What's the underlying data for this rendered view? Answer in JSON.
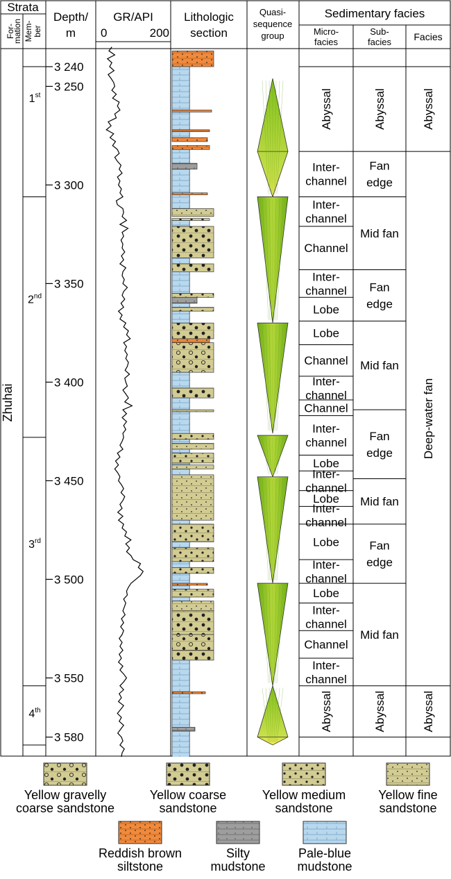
{
  "header": {
    "strata": "Strata",
    "formation": [
      "For-",
      "mation"
    ],
    "member": [
      "Mem-",
      "ber"
    ],
    "depth": [
      "Depth/",
      "m"
    ],
    "gr": "GR/API",
    "gr_min": "0",
    "gr_max": "200",
    "litho": [
      "Lithologic",
      "section"
    ],
    "quasi": [
      "Quasi-",
      "sequence",
      "group"
    ],
    "sedfacies": "Sedimentary facies",
    "microfacies": [
      "Micro-",
      "facies"
    ],
    "subfacies": [
      "Sub-",
      "facies"
    ],
    "facies": "Facies"
  },
  "formation_name": "Zhuhai",
  "members": [
    {
      "num": "1",
      "sup": "st",
      "top": 3232,
      "bottom": 3306
    },
    {
      "num": "2",
      "sup": "nd",
      "top": 3306,
      "bottom": 3428
    },
    {
      "num": "3",
      "sup": "rd",
      "top": 3428,
      "bottom": 3554
    },
    {
      "num": "4",
      "sup": "th",
      "top": 3554,
      "bottom": 3592
    }
  ],
  "depth_ticks": [
    {
      "value": 3240,
      "label": "3 240"
    },
    {
      "value": 3250,
      "label": "3 250"
    },
    {
      "value": 3300,
      "label": "3 300"
    },
    {
      "value": 3350,
      "label": "3 350"
    },
    {
      "value": 3400,
      "label": "3 400"
    },
    {
      "value": 3450,
      "label": "3 450"
    },
    {
      "value": 3500,
      "label": "3 500"
    },
    {
      "value": 3550,
      "label": "3 550"
    },
    {
      "value": 3580,
      "label": "3 580"
    }
  ],
  "triangles": [
    {
      "top": 3246,
      "mid": 3283,
      "bottom": 3306
    },
    {
      "top": 3306,
      "bottom": 3370
    },
    {
      "top": 3370,
      "bottom": 3426
    },
    {
      "top": 3427,
      "bottom": 3448
    },
    {
      "top": 3448,
      "bottom": 3502
    },
    {
      "top": 3502,
      "bottom": 3554
    },
    {
      "top": 3554,
      "mid": 3580,
      "bottom": 3584
    }
  ],
  "microfacies": [
    {
      "label": "Abyssal",
      "top": 3240,
      "bottom": 3283,
      "vertical": false
    },
    {
      "label": "Inter-\nchannel",
      "top": 3283,
      "bottom": 3306
    },
    {
      "label": "Inter-\nchannel",
      "top": 3306,
      "bottom": 3321
    },
    {
      "label": "Channel",
      "top": 3321,
      "bottom": 3343
    },
    {
      "label": "Inter-\nchannel",
      "top": 3343,
      "bottom": 3357
    },
    {
      "label": "Lobe",
      "top": 3357,
      "bottom": 3369
    },
    {
      "label": "Lobe",
      "top": 3369,
      "bottom": 3381
    },
    {
      "label": "Channel",
      "top": 3381,
      "bottom": 3397
    },
    {
      "label": "Inter-\nchannel",
      "top": 3397,
      "bottom": 3409
    },
    {
      "label": "Channel",
      "top": 3409,
      "bottom": 3417
    },
    {
      "label": "Inter-\nchannel",
      "top": 3417,
      "bottom": 3437
    },
    {
      "label": "Lobe",
      "top": 3437,
      "bottom": 3445
    },
    {
      "label": "Inter-\nchannel",
      "top": 3445,
      "bottom": 3455
    },
    {
      "label": "Lobe",
      "top": 3455,
      "bottom": 3463
    },
    {
      "label": "Inter-\nchannel",
      "top": 3463,
      "bottom": 3472
    },
    {
      "label": "Lobe",
      "top": 3472,
      "bottom": 3490
    },
    {
      "label": "Inter-\nchannel",
      "top": 3490,
      "bottom": 3502
    },
    {
      "label": "Lobe",
      "top": 3502,
      "bottom": 3512
    },
    {
      "label": "Inter-\nchannel",
      "top": 3512,
      "bottom": 3526
    },
    {
      "label": "Channel",
      "top": 3526,
      "bottom": 3540
    },
    {
      "label": "Inter-\nchannel",
      "top": 3540,
      "bottom": 3554
    },
    {
      "label": "Abyssal",
      "top": 3554,
      "bottom": 3580,
      "vertical": true
    }
  ],
  "subfacies": [
    {
      "label": "Abyssal",
      "top": 3240,
      "bottom": 3283
    },
    {
      "label": "Fan\nedge",
      "top": 3283,
      "bottom": 3306
    },
    {
      "label": "Mid fan",
      "top": 3306,
      "bottom": 3343
    },
    {
      "label": "Fan\nedge",
      "top": 3343,
      "bottom": 3369
    },
    {
      "label": "Mid fan",
      "top": 3369,
      "bottom": 3414
    },
    {
      "label": "Fan\nedge",
      "top": 3414,
      "bottom": 3449
    },
    {
      "label": "Mid fan",
      "top": 3449,
      "bottom": 3472
    },
    {
      "label": "Fan\nedge",
      "top": 3472,
      "bottom": 3502
    },
    {
      "label": "Mid fan",
      "top": 3502,
      "bottom": 3554
    },
    {
      "label": "Abyssal",
      "top": 3554,
      "bottom": 3580,
      "vertical": true
    }
  ],
  "facies": [
    {
      "label": "Abyssal",
      "top": 3240,
      "bottom": 3283
    },
    {
      "label": "Deep-water fan",
      "top": 3283,
      "bottom": 3554
    },
    {
      "label": "Abyssal",
      "top": 3554,
      "bottom": 3580
    }
  ],
  "lithology": [
    {
      "type": "reddish",
      "top": 3232,
      "bottom": 3240,
      "w": 1.0
    },
    {
      "type": "paleblue",
      "top": 3240,
      "bottom": 3262,
      "w": 0.42
    },
    {
      "type": "reddish",
      "top": 3262,
      "bottom": 3263,
      "w": 0.95
    },
    {
      "type": "paleblue",
      "top": 3263,
      "bottom": 3272,
      "w": 0.42
    },
    {
      "type": "reddish",
      "top": 3272,
      "bottom": 3273,
      "w": 0.9
    },
    {
      "type": "paleblue",
      "top": 3273,
      "bottom": 3276,
      "w": 0.42
    },
    {
      "type": "reddish",
      "top": 3276,
      "bottom": 3278,
      "w": 0.85
    },
    {
      "type": "reddish",
      "top": 3280,
      "bottom": 3282,
      "w": 0.9
    },
    {
      "type": "paleblue",
      "top": 3282,
      "bottom": 3289,
      "w": 0.42
    },
    {
      "type": "silty",
      "top": 3289,
      "bottom": 3292,
      "w": 0.6
    },
    {
      "type": "paleblue",
      "top": 3292,
      "bottom": 3312,
      "w": 0.42
    },
    {
      "type": "reddish",
      "top": 3304,
      "bottom": 3305,
      "w": 0.85
    },
    {
      "type": "fine",
      "top": 3312,
      "bottom": 3316,
      "w": 1.0
    },
    {
      "type": "medium",
      "top": 3317,
      "bottom": 3318,
      "w": 0.9
    },
    {
      "type": "paleblue",
      "top": 3318,
      "bottom": 3321,
      "w": 0.42
    },
    {
      "type": "coarse",
      "top": 3321,
      "bottom": 3337,
      "w": 1.0
    },
    {
      "type": "paleblue",
      "top": 3337,
      "bottom": 3340,
      "w": 0.42
    },
    {
      "type": "coarse",
      "top": 3340,
      "bottom": 3344,
      "w": 1.0
    },
    {
      "type": "paleblue",
      "top": 3344,
      "bottom": 3355,
      "w": 0.42
    },
    {
      "type": "medium",
      "top": 3355,
      "bottom": 3357,
      "w": 1.0
    },
    {
      "type": "silty",
      "top": 3357,
      "bottom": 3360,
      "w": 0.6
    },
    {
      "type": "paleblue",
      "top": 3360,
      "bottom": 3362,
      "w": 0.42
    },
    {
      "type": "medium",
      "top": 3362,
      "bottom": 3364,
      "w": 1.0
    },
    {
      "type": "paleblue",
      "top": 3364,
      "bottom": 3370,
      "w": 0.42
    },
    {
      "type": "coarse",
      "top": 3370,
      "bottom": 3378,
      "w": 1.0
    },
    {
      "type": "reddish",
      "top": 3378,
      "bottom": 3380,
      "w": 0.9
    },
    {
      "type": "gravelly",
      "top": 3380,
      "bottom": 3395,
      "w": 1.0
    },
    {
      "type": "paleblue",
      "top": 3395,
      "bottom": 3403,
      "w": 0.42
    },
    {
      "type": "coarse",
      "top": 3403,
      "bottom": 3408,
      "w": 1.0
    },
    {
      "type": "paleblue",
      "top": 3408,
      "bottom": 3414,
      "w": 0.42
    },
    {
      "type": "fine",
      "top": 3414,
      "bottom": 3415,
      "w": 1.0
    },
    {
      "type": "paleblue",
      "top": 3415,
      "bottom": 3426,
      "w": 0.42
    },
    {
      "type": "medium",
      "top": 3426,
      "bottom": 3429,
      "w": 1.0
    },
    {
      "type": "paleblue",
      "top": 3429,
      "bottom": 3431,
      "w": 0.42
    },
    {
      "type": "fine",
      "top": 3431,
      "bottom": 3434,
      "w": 1.0
    },
    {
      "type": "paleblue",
      "top": 3434,
      "bottom": 3436,
      "w": 0.42
    },
    {
      "type": "medium",
      "top": 3436,
      "bottom": 3441,
      "w": 1.0
    },
    {
      "type": "paleblue",
      "top": 3441,
      "bottom": 3442,
      "w": 0.42
    },
    {
      "type": "fine",
      "top": 3442,
      "bottom": 3444,
      "w": 1.0
    },
    {
      "type": "paleblue",
      "top": 3444,
      "bottom": 3447,
      "w": 0.42
    },
    {
      "type": "fine",
      "top": 3447,
      "bottom": 3470,
      "w": 1.0
    },
    {
      "type": "paleblue",
      "top": 3470,
      "bottom": 3472,
      "w": 0.42
    },
    {
      "type": "medium",
      "top": 3472,
      "bottom": 3481,
      "w": 1.0
    },
    {
      "type": "paleblue",
      "top": 3481,
      "bottom": 3484,
      "w": 0.42
    },
    {
      "type": "medium",
      "top": 3484,
      "bottom": 3491,
      "w": 1.0
    },
    {
      "type": "paleblue",
      "top": 3491,
      "bottom": 3494,
      "w": 0.42
    },
    {
      "type": "medium",
      "top": 3494,
      "bottom": 3497,
      "w": 1.0
    },
    {
      "type": "paleblue",
      "top": 3497,
      "bottom": 3502,
      "w": 0.42
    },
    {
      "type": "reddish",
      "top": 3502,
      "bottom": 3503,
      "w": 0.85
    },
    {
      "type": "paleblue",
      "top": 3503,
      "bottom": 3505,
      "w": 0.42
    },
    {
      "type": "medium",
      "top": 3505,
      "bottom": 3509,
      "w": 1.0
    },
    {
      "type": "paleblue",
      "top": 3509,
      "bottom": 3511,
      "w": 0.42
    },
    {
      "type": "fine",
      "top": 3511,
      "bottom": 3516,
      "w": 1.0
    },
    {
      "type": "coarse",
      "top": 3516,
      "bottom": 3528,
      "w": 1.0
    },
    {
      "type": "gravelly",
      "top": 3528,
      "bottom": 3536,
      "w": 1.0
    },
    {
      "type": "coarse",
      "top": 3536,
      "bottom": 3541,
      "w": 1.0
    },
    {
      "type": "paleblue",
      "top": 3541,
      "bottom": 3557,
      "w": 0.42
    },
    {
      "type": "reddish",
      "top": 3557,
      "bottom": 3558,
      "w": 0.8
    },
    {
      "type": "paleblue",
      "top": 3558,
      "bottom": 3575,
      "w": 0.42
    },
    {
      "type": "silty",
      "top": 3575,
      "bottom": 3577,
      "w": 0.55
    },
    {
      "type": "paleblue",
      "top": 3577,
      "bottom": 3592,
      "w": 0.42
    }
  ],
  "gr_curve": [
    [
      3230,
      40
    ],
    [
      3232,
      32
    ],
    [
      3234,
      48
    ],
    [
      3236,
      28
    ],
    [
      3238,
      40
    ],
    [
      3240,
      34
    ],
    [
      3242,
      46
    ],
    [
      3244,
      30
    ],
    [
      3246,
      38
    ],
    [
      3248,
      45
    ],
    [
      3250,
      48
    ],
    [
      3252,
      40
    ],
    [
      3254,
      52
    ],
    [
      3256,
      42
    ],
    [
      3258,
      60
    ],
    [
      3260,
      55
    ],
    [
      3262,
      62
    ],
    [
      3264,
      48
    ],
    [
      3266,
      52
    ],
    [
      3268,
      30
    ],
    [
      3270,
      38
    ],
    [
      3272,
      25
    ],
    [
      3274,
      45
    ],
    [
      3276,
      35
    ],
    [
      3278,
      50
    ],
    [
      3280,
      42
    ],
    [
      3282,
      55
    ],
    [
      3284,
      60
    ],
    [
      3286,
      48
    ],
    [
      3288,
      55
    ],
    [
      3290,
      65
    ],
    [
      3292,
      60
    ],
    [
      3294,
      68
    ],
    [
      3296,
      55
    ],
    [
      3298,
      62
    ],
    [
      3300,
      58
    ],
    [
      3302,
      66
    ],
    [
      3304,
      62
    ],
    [
      3306,
      70
    ],
    [
      3308,
      52
    ],
    [
      3310,
      55
    ],
    [
      3312,
      70
    ],
    [
      3314,
      72
    ],
    [
      3316,
      68
    ],
    [
      3318,
      80
    ],
    [
      3320,
      62
    ],
    [
      3322,
      84
    ],
    [
      3324,
      68
    ],
    [
      3326,
      72
    ],
    [
      3328,
      65
    ],
    [
      3330,
      70
    ],
    [
      3332,
      68
    ],
    [
      3334,
      75
    ],
    [
      3336,
      66
    ],
    [
      3338,
      72
    ],
    [
      3340,
      62
    ],
    [
      3342,
      78
    ],
    [
      3344,
      70
    ],
    [
      3346,
      68
    ],
    [
      3348,
      74
    ],
    [
      3350,
      70
    ],
    [
      3352,
      82
    ],
    [
      3354,
      72
    ],
    [
      3356,
      68
    ],
    [
      3358,
      75
    ],
    [
      3360,
      65
    ],
    [
      3362,
      72
    ],
    [
      3364,
      58
    ],
    [
      3366,
      68
    ],
    [
      3368,
      62
    ],
    [
      3370,
      78
    ],
    [
      3372,
      72
    ],
    [
      3374,
      85
    ],
    [
      3376,
      80
    ],
    [
      3378,
      90
    ],
    [
      3380,
      72
    ],
    [
      3382,
      80
    ],
    [
      3384,
      75
    ],
    [
      3386,
      82
    ],
    [
      3388,
      78
    ],
    [
      3390,
      85
    ],
    [
      3392,
      82
    ],
    [
      3394,
      76
    ],
    [
      3396,
      88
    ],
    [
      3398,
      75
    ],
    [
      3400,
      78
    ],
    [
      3402,
      82
    ],
    [
      3404,
      70
    ],
    [
      3406,
      78
    ],
    [
      3408,
      85
    ],
    [
      3410,
      75
    ],
    [
      3412,
      95
    ],
    [
      3414,
      70
    ],
    [
      3416,
      80
    ],
    [
      3418,
      68
    ],
    [
      3420,
      80
    ],
    [
      3422,
      72
    ],
    [
      3424,
      78
    ],
    [
      3426,
      70
    ],
    [
      3428,
      72
    ],
    [
      3430,
      68
    ],
    [
      3432,
      62
    ],
    [
      3434,
      70
    ],
    [
      3436,
      55
    ],
    [
      3438,
      62
    ],
    [
      3440,
      50
    ],
    [
      3442,
      58
    ],
    [
      3444,
      48
    ],
    [
      3446,
      56
    ],
    [
      3448,
      62
    ],
    [
      3450,
      58
    ],
    [
      3452,
      66
    ],
    [
      3454,
      72
    ],
    [
      3456,
      65
    ],
    [
      3458,
      75
    ],
    [
      3460,
      70
    ],
    [
      3462,
      62
    ],
    [
      3464,
      68
    ],
    [
      3466,
      56
    ],
    [
      3468,
      70
    ],
    [
      3470,
      58
    ],
    [
      3472,
      72
    ],
    [
      3474,
      68
    ],
    [
      3476,
      80
    ],
    [
      3478,
      75
    ],
    [
      3480,
      92
    ],
    [
      3482,
      78
    ],
    [
      3484,
      88
    ],
    [
      3486,
      80
    ],
    [
      3488,
      92
    ],
    [
      3490,
      98
    ],
    [
      3492,
      118
    ],
    [
      3494,
      112
    ],
    [
      3496,
      125
    ],
    [
      3498,
      118
    ],
    [
      3500,
      105
    ],
    [
      3502,
      92
    ],
    [
      3504,
      85
    ],
    [
      3506,
      80
    ],
    [
      3508,
      82
    ],
    [
      3510,
      72
    ],
    [
      3512,
      78
    ],
    [
      3514,
      74
    ],
    [
      3516,
      70
    ],
    [
      3518,
      76
    ],
    [
      3520,
      66
    ],
    [
      3522,
      72
    ],
    [
      3524,
      64
    ],
    [
      3526,
      72
    ],
    [
      3528,
      68
    ],
    [
      3530,
      60
    ],
    [
      3532,
      68
    ],
    [
      3534,
      62
    ],
    [
      3536,
      70
    ],
    [
      3538,
      60
    ],
    [
      3540,
      66
    ],
    [
      3542,
      58
    ],
    [
      3544,
      70
    ],
    [
      3546,
      62
    ],
    [
      3548,
      72
    ],
    [
      3550,
      80
    ],
    [
      3552,
      72
    ],
    [
      3554,
      62
    ],
    [
      3556,
      72
    ],
    [
      3558,
      60
    ],
    [
      3560,
      66
    ],
    [
      3562,
      58
    ],
    [
      3564,
      72
    ],
    [
      3566,
      64
    ],
    [
      3568,
      55
    ],
    [
      3570,
      66
    ],
    [
      3572,
      60
    ],
    [
      3574,
      72
    ],
    [
      3576,
      64
    ],
    [
      3578,
      56
    ],
    [
      3580,
      66
    ],
    [
      3582,
      70
    ],
    [
      3584,
      62
    ],
    [
      3586,
      74
    ],
    [
      3588,
      68
    ],
    [
      3590,
      66
    ],
    [
      3592,
      72
    ]
  ],
  "legend": [
    {
      "type": "gravelly",
      "label": [
        "Yellow gravelly",
        "coarse sandstone"
      ]
    },
    {
      "type": "coarse",
      "label": [
        "Yellow coarse",
        "sandstone"
      ]
    },
    {
      "type": "medium",
      "label": [
        "Yellow medium",
        "sandstone"
      ]
    },
    {
      "type": "fine",
      "label": [
        "Yellow fine",
        "sandstone"
      ]
    },
    {
      "type": "reddish",
      "label": [
        "Reddish brown",
        "siltstone"
      ]
    },
    {
      "type": "silty",
      "label": [
        "Silty",
        "mudstone"
      ]
    },
    {
      "type": "paleblue",
      "label": [
        "Pale-blue",
        "mudstone"
      ]
    }
  ],
  "colors": {
    "sandstone": "#d2cc93",
    "reddish": "#f08a3c",
    "silty": "#9e9e9e",
    "paleblue": "#b8d8ee",
    "triangle_green": "#7fbf1c",
    "triangle_yellow": "#e8e84a"
  }
}
